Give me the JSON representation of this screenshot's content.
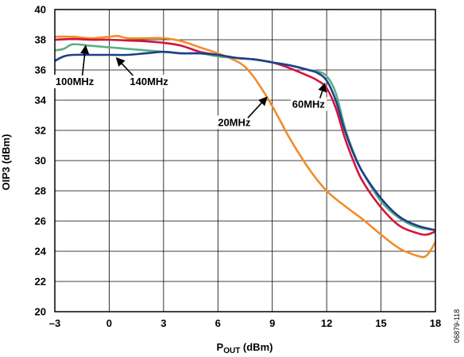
{
  "chart_data": {
    "type": "line",
    "title": "",
    "xlabel_main": "P",
    "xlabel_sub": "OUT",
    "xlabel_unit": " (dBm)",
    "ylabel": "OIP3 (dBm)",
    "xlim": [
      -3,
      18
    ],
    "ylim": [
      20,
      40
    ],
    "xticks": [
      -3,
      0,
      3,
      6,
      9,
      12,
      15,
      18
    ],
    "xtick_labels": [
      "–3",
      "0",
      "3",
      "6",
      "9",
      "12",
      "15",
      "18"
    ],
    "yticks": [
      20,
      22,
      24,
      26,
      28,
      30,
      32,
      34,
      36,
      38,
      40
    ],
    "grid": true,
    "figure_id": "06879-118",
    "series": [
      {
        "name": "20MHz",
        "color": "#F28C28",
        "x": [
          -3,
          -2,
          -1,
          0,
          0.5,
          1,
          2,
          3,
          4,
          5,
          6,
          7,
          7.5,
          8,
          8.5,
          9,
          9.5,
          10,
          11,
          12,
          13,
          14,
          15,
          16,
          17,
          17.5,
          18
        ],
        "y": [
          38.2,
          38.2,
          38.1,
          38.2,
          38.25,
          38.1,
          38.1,
          38.1,
          37.9,
          37.5,
          37.1,
          36.6,
          36.2,
          35.5,
          34.6,
          33.6,
          32.5,
          31.4,
          29.5,
          28.0,
          27.0,
          26.1,
          25.1,
          24.2,
          23.7,
          23.7,
          24.6
        ]
      },
      {
        "name": "60MHz",
        "color": "#D4143C",
        "x": [
          -3,
          -2,
          -1,
          0,
          1,
          2,
          3,
          4,
          5,
          6,
          7,
          8,
          9,
          10,
          11,
          11.5,
          12,
          12.5,
          13,
          13.5,
          14,
          15,
          16,
          17,
          17.5,
          18
        ],
        "y": [
          38.0,
          38.05,
          38.0,
          38.0,
          37.95,
          37.9,
          37.8,
          37.6,
          37.2,
          37.0,
          36.8,
          36.7,
          36.5,
          36.1,
          35.6,
          35.3,
          34.8,
          33.5,
          31.5,
          29.9,
          28.6,
          26.9,
          25.7,
          25.2,
          25.1,
          25.3
        ]
      },
      {
        "name": "100MHz",
        "color": "#5BAE86",
        "x": [
          -3,
          -2.5,
          -2,
          -1,
          0,
          1,
          2,
          3,
          4,
          5,
          6,
          7,
          8,
          9,
          10,
          11,
          11.5,
          12,
          12.5,
          13,
          13.5,
          14,
          15,
          16,
          17,
          18
        ],
        "y": [
          37.3,
          37.4,
          37.7,
          37.6,
          37.5,
          37.4,
          37.3,
          37.2,
          37.1,
          37.1,
          36.9,
          36.8,
          36.7,
          36.5,
          36.3,
          36.0,
          35.9,
          35.6,
          34.5,
          32.2,
          30.5,
          29.2,
          27.3,
          26.2,
          25.6,
          25.4
        ]
      },
      {
        "name": "140MHz",
        "color": "#1E3F8A",
        "x": [
          -3,
          -2.5,
          -2,
          -1,
          0,
          1,
          2,
          3,
          4,
          5,
          6,
          7,
          8,
          9,
          10,
          11,
          11.5,
          12,
          12.5,
          13,
          13.5,
          14,
          15,
          16,
          17,
          18
        ],
        "y": [
          36.6,
          36.9,
          37.0,
          37.0,
          37.0,
          37.0,
          37.1,
          37.2,
          37.1,
          37.1,
          37.0,
          36.8,
          36.7,
          36.5,
          36.3,
          36.0,
          35.8,
          35.3,
          34.0,
          32.0,
          30.4,
          29.2,
          27.5,
          26.3,
          25.7,
          25.4
        ]
      }
    ],
    "annotations": [
      {
        "text": "100MHz",
        "x": -1.9,
        "y": 35.0,
        "arrow_x": -1.3,
        "arrow_y": 37.6
      },
      {
        "text": "140MHz",
        "x": 2.2,
        "y": 35.0,
        "arrow_x": 0.4,
        "arrow_y": 36.8
      },
      {
        "text": "20MHz",
        "x": 6.9,
        "y": 32.3,
        "arrow_x": 8.7,
        "arrow_y": 34.2
      },
      {
        "text": "60MHz",
        "x": 11.0,
        "y": 33.5,
        "arrow_x": 11.9,
        "arrow_y": 35.1
      }
    ]
  }
}
